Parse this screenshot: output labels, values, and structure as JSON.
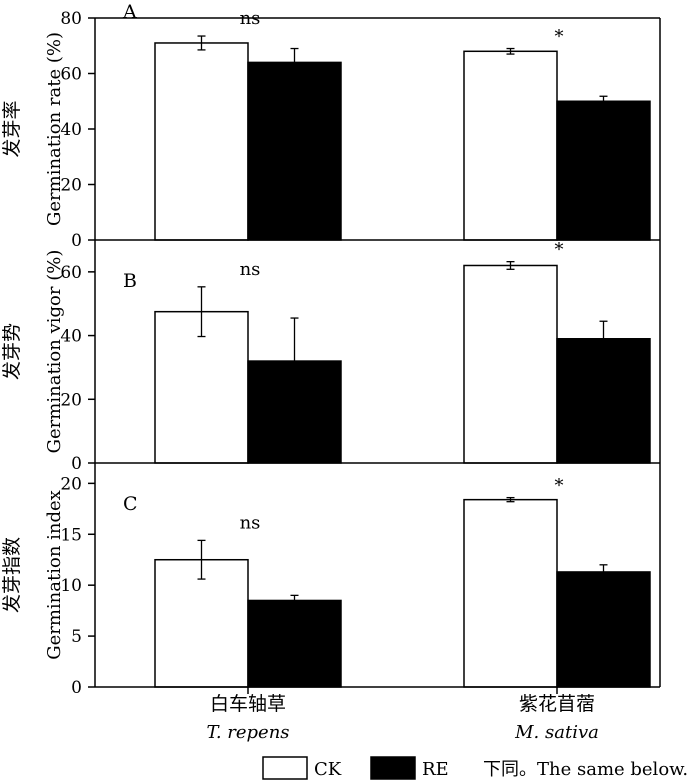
{
  "chart_data": {
    "type": "bar",
    "categories": [
      {
        "name_cn": "白车轴草",
        "name_latin": "T. repens"
      },
      {
        "name_cn": "紫花苜蓿",
        "name_latin": "M. sativa"
      }
    ],
    "legend": [
      {
        "label": "CK",
        "color": "#ffffff"
      },
      {
        "label": "RE",
        "color": "#000000"
      }
    ],
    "legend_note": "下同。The same below.",
    "panels": [
      {
        "letter": "A",
        "ylabel_en": "Germination rate (%)",
        "ylabel_cn": "发芽率",
        "ylim": [
          0,
          80
        ],
        "yticks": [
          "0",
          "20",
          "40",
          "60",
          "80"
        ],
        "series": [
          {
            "name": "CK",
            "values": [
              71,
              68
            ],
            "errors": [
              2.5,
              1.0
            ]
          },
          {
            "name": "RE",
            "values": [
              64,
              50
            ],
            "errors": [
              5.0,
              1.8
            ]
          }
        ],
        "significance": [
          "ns",
          "*"
        ]
      },
      {
        "letter": "B",
        "ylabel_en": "Germination vigor (%)",
        "ylabel_cn": "发芽势",
        "ylim": [
          0,
          70
        ],
        "yticks": [
          "0",
          "20",
          "40",
          "60"
        ],
        "series": [
          {
            "name": "CK",
            "values": [
              47.5,
              62
            ],
            "errors": [
              7.8,
              1.2
            ]
          },
          {
            "name": "RE",
            "values": [
              32,
              39
            ],
            "errors": [
              13.5,
              5.5
            ]
          }
        ],
        "significance": [
          "ns",
          "*"
        ]
      },
      {
        "letter": "C",
        "ylabel_en": "Germination index",
        "ylabel_cn": "发芽指数",
        "ylim": [
          0,
          22
        ],
        "yticks": [
          "0",
          "5",
          "10",
          "15",
          "20"
        ],
        "series": [
          {
            "name": "CK",
            "values": [
              12.5,
              18.4
            ],
            "errors": [
              1.9,
              0.2
            ]
          },
          {
            "name": "RE",
            "values": [
              8.5,
              11.3
            ],
            "errors": [
              0.5,
              0.7
            ]
          }
        ],
        "significance": [
          "ns",
          "*"
        ]
      }
    ]
  }
}
